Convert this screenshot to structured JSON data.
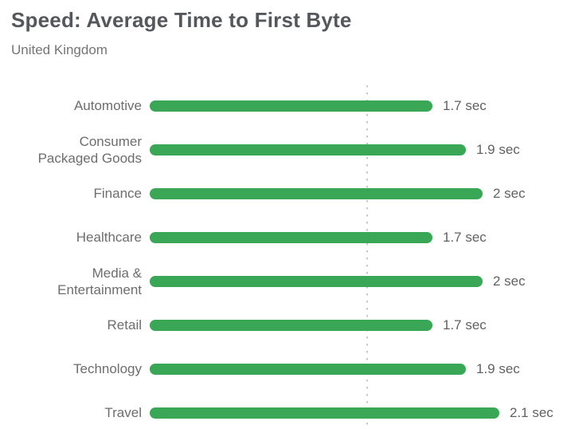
{
  "header": {
    "title": "Speed: Average Time to First Byte",
    "subtitle": "United Kingdom"
  },
  "chart_data": {
    "type": "bar",
    "orientation": "horizontal",
    "title": "Speed: Average Time to First Byte",
    "subtitle": "United Kingdom",
    "unit": "sec",
    "categories": [
      "Automotive",
      "Consumer Packaged Goods",
      "Finance",
      "Healthcare",
      "Media & Entertainment",
      "Retail",
      "Technology",
      "Travel"
    ],
    "category_display": [
      "Automotive",
      "Consumer\nPackaged Goods",
      "Finance",
      "Healthcare",
      "Media &\nEntertainment",
      "Retail",
      "Technology",
      "Travel"
    ],
    "values": [
      1.7,
      1.9,
      2,
      1.7,
      2,
      1.7,
      1.9,
      2.1
    ],
    "value_labels": [
      "1.7 sec",
      "1.9 sec",
      "2 sec",
      "1.7 sec",
      "2 sec",
      "1.7 sec",
      "1.9 sec",
      "2.1 sec"
    ],
    "xlim": [
      0,
      2.2
    ],
    "reference_line_value": 1.3,
    "bar_color": "#3aa757",
    "reference_line_color": "#c9c9c9",
    "legend": "none",
    "grid": "off"
  }
}
